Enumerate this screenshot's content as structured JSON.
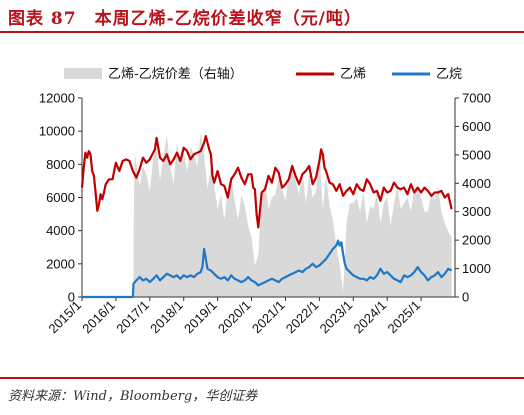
{
  "header": {
    "title": "图表 87　本周乙烯-乙烷价差收窄（元/吨）"
  },
  "footer": {
    "source": "资料来源：Wind，Bloomberg，华创证券"
  },
  "colors": {
    "title": "#b8121b",
    "ethylene": "#c00000",
    "ethane": "#1f77c6",
    "spread": "#d9d9d9"
  },
  "chart_data": {
    "type": "line",
    "title": "",
    "legend": [
      "乙烯-乙烷价差（右轴）",
      "乙烯",
      "乙烷"
    ],
    "legend_position": "top",
    "x_ticks": [
      "2015/1",
      "2016/1",
      "2017/1",
      "2018/1",
      "2019/1",
      "2020/1",
      "2021/1",
      "2022/1",
      "2023/1",
      "2024/1",
      "2025/1"
    ],
    "x_range": [
      2015.0,
      2026.0
    ],
    "left_axis": {
      "ticks": [
        "0",
        "2000",
        "4000",
        "6000",
        "8000",
        "10000",
        "12000"
      ],
      "range": [
        0,
        12000
      ]
    },
    "right_axis": {
      "ticks": [
        "0",
        "1000",
        "2000",
        "3000",
        "4000",
        "5000",
        "6000",
        "7000"
      ],
      "range": [
        0,
        7000
      ]
    },
    "series": [
      {
        "name": "乙烯-乙烷价差（右轴）",
        "kind": "area",
        "axis": "right",
        "x": [
          2016.52,
          2016.55,
          2016.6,
          2016.7,
          2016.8,
          2016.9,
          2017.0,
          2017.1,
          2017.2,
          2017.3,
          2017.4,
          2017.5,
          2017.6,
          2017.7,
          2017.8,
          2017.9,
          2018.0,
          2018.1,
          2018.2,
          2018.3,
          2018.4,
          2018.5,
          2018.6,
          2018.7,
          2018.8,
          2018.9,
          2019.0,
          2019.1,
          2019.2,
          2019.3,
          2019.4,
          2019.5,
          2019.6,
          2019.7,
          2019.8,
          2019.9,
          2020.0,
          2020.1,
          2020.2,
          2020.3,
          2020.4,
          2020.5,
          2020.6,
          2020.7,
          2020.8,
          2020.9,
          2021.0,
          2021.1,
          2021.2,
          2021.3,
          2021.4,
          2021.5,
          2021.6,
          2021.7,
          2021.8,
          2021.9,
          2022.0,
          2022.1,
          2022.2,
          2022.3,
          2022.4,
          2022.5,
          2022.6,
          2022.7,
          2022.8,
          2022.9,
          2023.0,
          2023.1,
          2023.2,
          2023.3,
          2023.4,
          2023.5,
          2023.6,
          2023.7,
          2023.8,
          2023.9,
          2024.0,
          2024.1,
          2024.2,
          2024.3,
          2024.4,
          2024.5,
          2024.6,
          2024.7,
          2024.8,
          2024.9,
          2025.0,
          2025.1,
          2025.2,
          2025.3,
          2025.4,
          2025.5,
          2025.6,
          2025.7,
          2025.8,
          2025.9
        ],
        "values": [
          2000,
          5000,
          4700,
          3900,
          4600,
          4300,
          3700,
          4900,
          5300,
          4100,
          4900,
          5700,
          4600,
          4000,
          5400,
          4800,
          5100,
          4400,
          5300,
          5000,
          4600,
          5800,
          5000,
          3800,
          4600,
          3900,
          3100,
          3600,
          2700,
          3800,
          4300,
          3400,
          2700,
          3600,
          3200,
          2500,
          2100,
          1100,
          1500,
          3600,
          4000,
          3100,
          3500,
          3600,
          4200,
          3800,
          3400,
          4200,
          4700,
          4100,
          3600,
          4500,
          3300,
          4300,
          3500,
          3700,
          5100,
          3100,
          4300,
          3200,
          2700,
          1800,
          1100,
          200,
          2600,
          3300,
          3300,
          3500,
          3000,
          3700,
          2600,
          3200,
          3100,
          3700,
          2600,
          3300,
          3500,
          2500,
          3300,
          3900,
          3100,
          3300,
          3500,
          3000,
          3800,
          3900,
          3500,
          3000,
          3000,
          3700,
          3400,
          3900,
          3000,
          2600,
          2300,
          2100
        ]
      },
      {
        "name": "乙烯",
        "kind": "line",
        "axis": "left",
        "x": [
          2015.0,
          2015.05,
          2015.1,
          2015.15,
          2015.2,
          2015.25,
          2015.3,
          2015.35,
          2015.4,
          2015.45,
          2015.5,
          2015.55,
          2015.6,
          2015.65,
          2015.7,
          2015.8,
          2015.9,
          2016.0,
          2016.1,
          2016.2,
          2016.3,
          2016.4,
          2016.5,
          2016.6,
          2016.7,
          2016.8,
          2016.9,
          2017.0,
          2017.05,
          2017.1,
          2017.15,
          2017.2,
          2017.3,
          2017.4,
          2017.5,
          2017.6,
          2017.7,
          2017.8,
          2017.9,
          2018.0,
          2018.1,
          2018.2,
          2018.3,
          2018.4,
          2018.5,
          2018.6,
          2018.65,
          2018.7,
          2018.75,
          2018.8,
          2018.85,
          2018.9,
          2019.0,
          2019.1,
          2019.2,
          2019.3,
          2019.4,
          2019.5,
          2019.6,
          2019.7,
          2019.8,
          2019.9,
          2020.0,
          2020.05,
          2020.1,
          2020.15,
          2020.2,
          2020.3,
          2020.4,
          2020.5,
          2020.6,
          2020.7,
          2020.8,
          2020.9,
          2021.0,
          2021.1,
          2021.2,
          2021.3,
          2021.4,
          2021.5,
          2021.6,
          2021.7,
          2021.8,
          2021.9,
          2022.0,
          2022.05,
          2022.1,
          2022.15,
          2022.2,
          2022.3,
          2022.4,
          2022.5,
          2022.6,
          2022.7,
          2022.8,
          2022.9,
          2023.0,
          2023.1,
          2023.2,
          2023.3,
          2023.4,
          2023.5,
          2023.6,
          2023.7,
          2023.8,
          2023.9,
          2024.0,
          2024.1,
          2024.2,
          2024.3,
          2024.4,
          2024.5,
          2024.6,
          2024.7,
          2024.8,
          2024.9,
          2025.0,
          2025.1,
          2025.2,
          2025.3,
          2025.4,
          2025.5,
          2025.6,
          2025.7,
          2025.8,
          2025.9
        ],
        "values": [
          6600,
          7800,
          8700,
          8400,
          8800,
          8600,
          7600,
          7300,
          6300,
          5200,
          5600,
          6200,
          5900,
          6300,
          6800,
          7100,
          7100,
          8100,
          7600,
          8200,
          8300,
          8200,
          7600,
          7200,
          7700,
          8400,
          8100,
          8300,
          8500,
          8700,
          8900,
          9600,
          8400,
          8200,
          8600,
          8000,
          8300,
          8700,
          8200,
          9000,
          8800,
          8300,
          8600,
          8700,
          8800,
          9300,
          9700,
          9300,
          8900,
          8600,
          7300,
          6900,
          7600,
          6800,
          6700,
          6000,
          7100,
          7400,
          7800,
          7200,
          6800,
          7400,
          7400,
          6600,
          6500,
          5000,
          4200,
          6300,
          6500,
          7300,
          6900,
          7800,
          7500,
          6600,
          6800,
          7100,
          7900,
          7300,
          6800,
          7400,
          7600,
          7900,
          6800,
          7200,
          8200,
          8900,
          8600,
          7800,
          7600,
          6900,
          6800,
          6400,
          6800,
          6100,
          6400,
          6600,
          6200,
          6800,
          6500,
          6400,
          7100,
          6800,
          6300,
          6400,
          5800,
          6600,
          6300,
          6400,
          6900,
          6600,
          6500,
          6600,
          6200,
          6800,
          6300,
          6600,
          6300,
          6600,
          6400,
          6100,
          6300,
          6300,
          6400,
          6000,
          6200,
          5300
        ],
        "line_color": "#c00000"
      },
      {
        "name": "乙烷",
        "kind": "line",
        "axis": "left",
        "x": [
          2015.0,
          2016.5,
          2016.52,
          2016.6,
          2016.7,
          2016.8,
          2016.9,
          2017.0,
          2017.1,
          2017.2,
          2017.3,
          2017.4,
          2017.5,
          2017.6,
          2017.7,
          2017.8,
          2017.9,
          2018.0,
          2018.1,
          2018.2,
          2018.3,
          2018.4,
          2018.5,
          2018.55,
          2018.6,
          2018.65,
          2018.7,
          2018.8,
          2018.9,
          2019.0,
          2019.1,
          2019.2,
          2019.3,
          2019.4,
          2019.5,
          2019.6,
          2019.7,
          2019.8,
          2019.9,
          2020.0,
          2020.1,
          2020.2,
          2020.3,
          2020.4,
          2020.5,
          2020.6,
          2020.7,
          2020.8,
          2020.9,
          2021.0,
          2021.1,
          2021.2,
          2021.3,
          2021.4,
          2021.5,
          2021.6,
          2021.7,
          2021.8,
          2021.9,
          2022.0,
          2022.1,
          2022.2,
          2022.3,
          2022.4,
          2022.5,
          2022.55,
          2022.6,
          2022.65,
          2022.7,
          2022.75,
          2022.8,
          2022.9,
          2023.0,
          2023.1,
          2023.2,
          2023.3,
          2023.4,
          2023.5,
          2023.6,
          2023.7,
          2023.8,
          2023.9,
          2024.0,
          2024.1,
          2024.2,
          2024.3,
          2024.4,
          2024.5,
          2024.6,
          2024.7,
          2024.8,
          2024.9,
          2025.0,
          2025.1,
          2025.2,
          2025.3,
          2025.4,
          2025.5,
          2025.6,
          2025.7,
          2025.8,
          2025.9
        ],
        "values": [
          0,
          0,
          800,
          1000,
          1200,
          1000,
          1100,
          900,
          1100,
          1300,
          1000,
          1200,
          1400,
          1300,
          1200,
          1300,
          1100,
          1300,
          1200,
          1300,
          1200,
          1400,
          1500,
          1800,
          2900,
          2300,
          1700,
          1600,
          1400,
          1200,
          1100,
          1200,
          1000,
          1300,
          1100,
          1000,
          900,
          1000,
          1200,
          1000,
          900,
          700,
          800,
          900,
          1000,
          1100,
          1000,
          900,
          1100,
          1200,
          1300,
          1400,
          1500,
          1600,
          1500,
          1700,
          1800,
          2000,
          1800,
          1900,
          2100,
          2300,
          2600,
          2900,
          3100,
          3400,
          3100,
          3300,
          2600,
          2000,
          1700,
          1500,
          1300,
          1200,
          1100,
          1100,
          1000,
          1200,
          1100,
          1300,
          1700,
          1400,
          1500,
          1300,
          1100,
          1000,
          900,
          1300,
          1200,
          1300,
          1500,
          1800,
          1500,
          1300,
          1000,
          1200,
          1300,
          1500,
          1200,
          1400,
          1700,
          1600
        ],
        "line_color": "#1f77c6"
      }
    ]
  }
}
